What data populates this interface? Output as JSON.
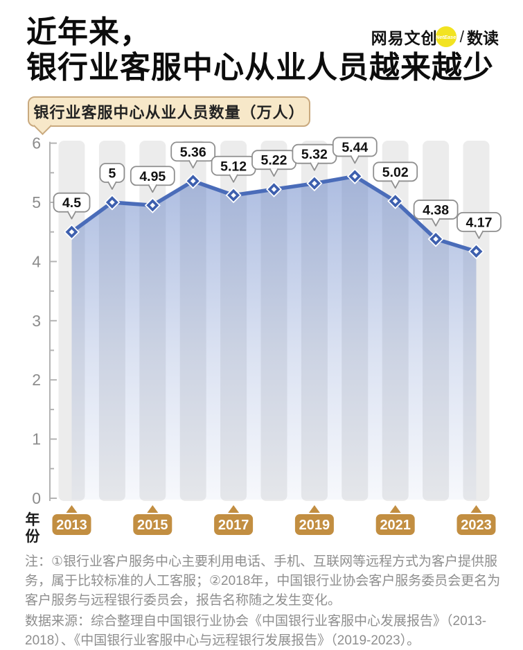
{
  "header": {
    "title_line1": "近年来，",
    "title_line2": "银行业客服中心从业人员越来越少",
    "logo": {
      "brand": "网易文创",
      "circle_text": "NetEase",
      "divider": "/",
      "product": "数读"
    }
  },
  "chart_badge": {
    "label": "银行业客服中心从业人员数量（万人）"
  },
  "chart_data": {
    "type": "area",
    "title": "银行业客服中心从业人员数量（万人）",
    "x": [
      2013,
      2014,
      2015,
      2016,
      2017,
      2018,
      2019,
      2020,
      2021,
      2022,
      2023
    ],
    "values": [
      4.5,
      5,
      4.95,
      5.36,
      5.12,
      5.22,
      5.32,
      5.44,
      5.02,
      4.38,
      4.17
    ],
    "point_labels": [
      "4.5",
      "5",
      "4.95",
      "5.36",
      "5.12",
      "5.22",
      "5.32",
      "5.44",
      "5.02",
      "4.38",
      "4.17"
    ],
    "x_tick_labels": [
      "2013",
      "2015",
      "2017",
      "2019",
      "2021",
      "2023"
    ],
    "xlabel": "年份",
    "ylabel": "",
    "ylim": [
      0,
      6
    ],
    "y_ticks": [
      0,
      1,
      2,
      3,
      4,
      5,
      6
    ],
    "grid": "vertical-stripes",
    "legend": "none"
  },
  "notes": {
    "note": "注：①银行业客户服务中心主要利用电话、手机、互联网等远程方式为客户提供服务，属于比较标准的人工客服；②2018年，中国银行业协会客户服务委员会更名为客户服务与远程银行委员会，报告名称随之发生变化。",
    "source": "数据来源：综合整理自中国银行业协会《中国银行业客服中心发展报告》（2013-2018）、《中国银行业客服中心与远程银行发展报告》（2019-2023）。"
  },
  "colors": {
    "line_blue": "#4a6cb9",
    "marker_blue": "#3d5fae",
    "area_fill_base": "#5b7bc3",
    "stripe_gray": "#ececec",
    "axis_gray": "#b3b3b3",
    "tick_label_gray": "#8c8c8c",
    "callout_border": "#8f8f8f",
    "year_pill_tan": "#c28e41",
    "badge_bg": "#f7e8c9",
    "badge_border": "#c9a97e",
    "logo_yellow": "#f2e321",
    "note_gray": "#8e8e8e"
  }
}
